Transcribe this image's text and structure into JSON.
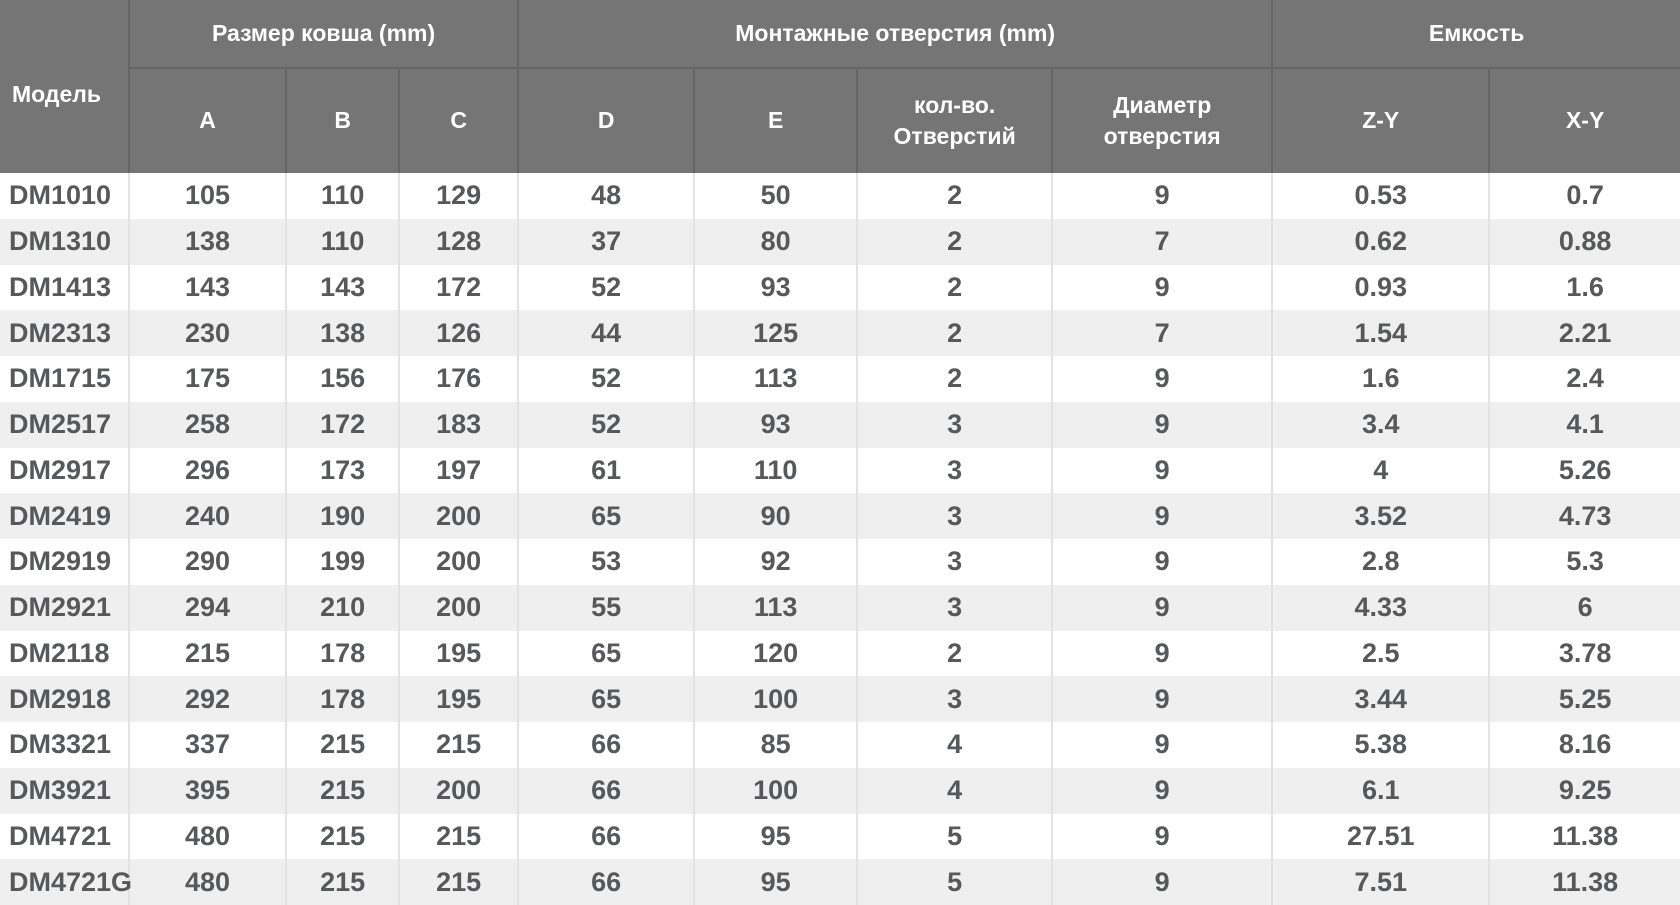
{
  "chart_data": {
    "type": "table",
    "header": {
      "model_label": "Модель",
      "groups": [
        {
          "label": "Размер ковша (mm)",
          "subcolumns": [
            "A",
            "B",
            "C"
          ]
        },
        {
          "label": "Монтажные отверстия (mm)",
          "subcolumns": [
            "D",
            "E",
            "кол-во. Отверстий",
            "Диаметр отверстия"
          ]
        },
        {
          "label": "Емкость",
          "subcolumns": [
            "Z-Y",
            "X-Y"
          ]
        }
      ]
    },
    "rows": [
      {
        "model": "DM1010",
        "values": [
          "105",
          "110",
          "129",
          "48",
          "50",
          "2",
          "9",
          "0.53",
          "0.7"
        ]
      },
      {
        "model": "DM1310",
        "values": [
          "138",
          "110",
          "128",
          "37",
          "80",
          "2",
          "7",
          "0.62",
          "0.88"
        ]
      },
      {
        "model": "DM1413",
        "values": [
          "143",
          "143",
          "172",
          "52",
          "93",
          "2",
          "9",
          "0.93",
          "1.6"
        ]
      },
      {
        "model": "DM2313",
        "values": [
          "230",
          "138",
          "126",
          "44",
          "125",
          "2",
          "7",
          "1.54",
          "2.21"
        ]
      },
      {
        "model": "DM1715",
        "values": [
          "175",
          "156",
          "176",
          "52",
          "113",
          "2",
          "9",
          "1.6",
          "2.4"
        ]
      },
      {
        "model": "DM2517",
        "values": [
          "258",
          "172",
          "183",
          "52",
          "93",
          "3",
          "9",
          "3.4",
          "4.1"
        ]
      },
      {
        "model": "DM2917",
        "values": [
          "296",
          "173",
          "197",
          "61",
          "110",
          "3",
          "9",
          "4",
          "5.26"
        ]
      },
      {
        "model": "DM2419",
        "values": [
          "240",
          "190",
          "200",
          "65",
          "90",
          "3",
          "9",
          "3.52",
          "4.73"
        ]
      },
      {
        "model": "DM2919",
        "values": [
          "290",
          "199",
          "200",
          "53",
          "92",
          "3",
          "9",
          "2.8",
          "5.3"
        ]
      },
      {
        "model": "DM2921",
        "values": [
          "294",
          "210",
          "200",
          "55",
          "113",
          "3",
          "9",
          "4.33",
          "6"
        ]
      },
      {
        "model": "DM2118",
        "values": [
          "215",
          "178",
          "195",
          "65",
          "120",
          "2",
          "9",
          "2.5",
          "3.78"
        ]
      },
      {
        "model": "DM2918",
        "values": [
          "292",
          "178",
          "195",
          "65",
          "100",
          "3",
          "9",
          "3.44",
          "5.25"
        ]
      },
      {
        "model": "DM3321",
        "values": [
          "337",
          "215",
          "215",
          "66",
          "85",
          "4",
          "9",
          "5.38",
          "8.16"
        ]
      },
      {
        "model": "DM3921",
        "values": [
          "395",
          "215",
          "200",
          "66",
          "100",
          "4",
          "9",
          "6.1",
          "9.25"
        ]
      },
      {
        "model": "DM4721",
        "values": [
          "480",
          "215",
          "215",
          "66",
          "95",
          "5",
          "9",
          "27.51",
          "11.38"
        ]
      },
      {
        "model": "DM4721G",
        "values": [
          "480",
          "215",
          "215",
          "66",
          "95",
          "5",
          "9",
          "7.51",
          "11.38"
        ]
      }
    ]
  },
  "colors": {
    "header_bg": "#757575",
    "header_text": "#ffffff",
    "header_divider": "#656565",
    "row_bg": "#ffffff",
    "row_alt_bg": "#efefef",
    "cell_text": "#57585a",
    "cell_divider": "#e2e2e2"
  }
}
